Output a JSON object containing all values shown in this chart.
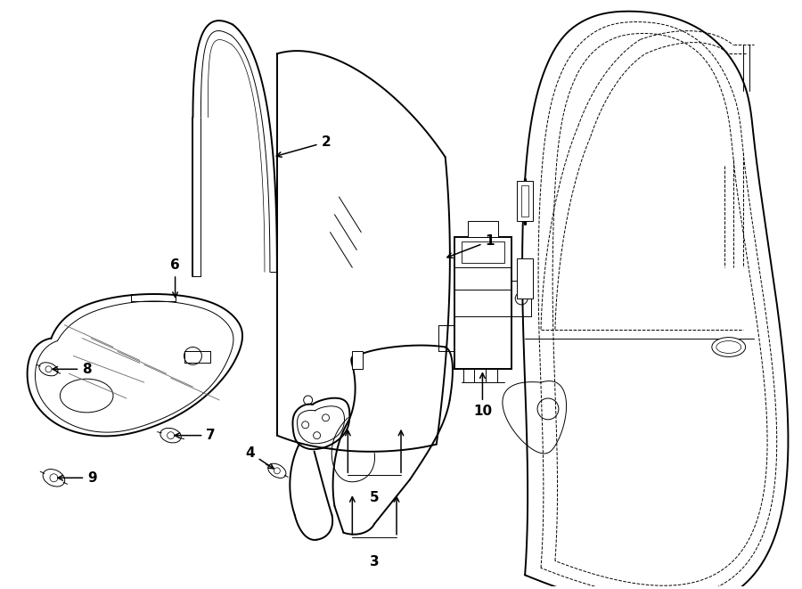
{
  "bg_color": "#ffffff",
  "line_color": "#000000",
  "fig_width": 9.0,
  "fig_height": 6.61,
  "dpi": 100,
  "lw_main": 1.4,
  "lw_med": 1.0,
  "lw_thin": 0.7,
  "label_fs": 11,
  "parts": [
    "1",
    "2",
    "3",
    "4",
    "5",
    "6",
    "7",
    "8",
    "9",
    "10"
  ]
}
